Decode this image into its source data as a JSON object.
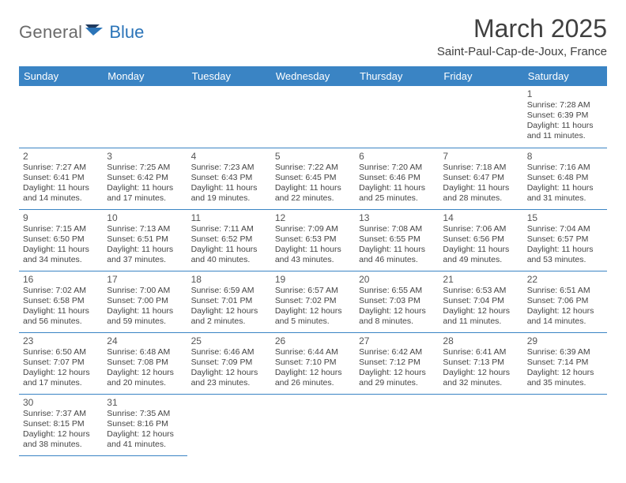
{
  "brand": {
    "part1": "General",
    "part2": "Blue"
  },
  "title": "March 2025",
  "subtitle": "Saint-Paul-Cap-de-Joux, France",
  "colors": {
    "header_bg": "#3a84c4",
    "header_fg": "#ffffff",
    "border": "#3a84c4",
    "logo_gray": "#6a6a6a",
    "logo_blue": "#2b74b8",
    "text": "#404040"
  },
  "weekdays": [
    "Sunday",
    "Monday",
    "Tuesday",
    "Wednesday",
    "Thursday",
    "Friday",
    "Saturday"
  ],
  "weeks": [
    [
      null,
      null,
      null,
      null,
      null,
      null,
      {
        "n": "1",
        "sunrise": "Sunrise: 7:28 AM",
        "sunset": "Sunset: 6:39 PM",
        "daylight": "Daylight: 11 hours and 11 minutes."
      }
    ],
    [
      {
        "n": "2",
        "sunrise": "Sunrise: 7:27 AM",
        "sunset": "Sunset: 6:41 PM",
        "daylight": "Daylight: 11 hours and 14 minutes."
      },
      {
        "n": "3",
        "sunrise": "Sunrise: 7:25 AM",
        "sunset": "Sunset: 6:42 PM",
        "daylight": "Daylight: 11 hours and 17 minutes."
      },
      {
        "n": "4",
        "sunrise": "Sunrise: 7:23 AM",
        "sunset": "Sunset: 6:43 PM",
        "daylight": "Daylight: 11 hours and 19 minutes."
      },
      {
        "n": "5",
        "sunrise": "Sunrise: 7:22 AM",
        "sunset": "Sunset: 6:45 PM",
        "daylight": "Daylight: 11 hours and 22 minutes."
      },
      {
        "n": "6",
        "sunrise": "Sunrise: 7:20 AM",
        "sunset": "Sunset: 6:46 PM",
        "daylight": "Daylight: 11 hours and 25 minutes."
      },
      {
        "n": "7",
        "sunrise": "Sunrise: 7:18 AM",
        "sunset": "Sunset: 6:47 PM",
        "daylight": "Daylight: 11 hours and 28 minutes."
      },
      {
        "n": "8",
        "sunrise": "Sunrise: 7:16 AM",
        "sunset": "Sunset: 6:48 PM",
        "daylight": "Daylight: 11 hours and 31 minutes."
      }
    ],
    [
      {
        "n": "9",
        "sunrise": "Sunrise: 7:15 AM",
        "sunset": "Sunset: 6:50 PM",
        "daylight": "Daylight: 11 hours and 34 minutes."
      },
      {
        "n": "10",
        "sunrise": "Sunrise: 7:13 AM",
        "sunset": "Sunset: 6:51 PM",
        "daylight": "Daylight: 11 hours and 37 minutes."
      },
      {
        "n": "11",
        "sunrise": "Sunrise: 7:11 AM",
        "sunset": "Sunset: 6:52 PM",
        "daylight": "Daylight: 11 hours and 40 minutes."
      },
      {
        "n": "12",
        "sunrise": "Sunrise: 7:09 AM",
        "sunset": "Sunset: 6:53 PM",
        "daylight": "Daylight: 11 hours and 43 minutes."
      },
      {
        "n": "13",
        "sunrise": "Sunrise: 7:08 AM",
        "sunset": "Sunset: 6:55 PM",
        "daylight": "Daylight: 11 hours and 46 minutes."
      },
      {
        "n": "14",
        "sunrise": "Sunrise: 7:06 AM",
        "sunset": "Sunset: 6:56 PM",
        "daylight": "Daylight: 11 hours and 49 minutes."
      },
      {
        "n": "15",
        "sunrise": "Sunrise: 7:04 AM",
        "sunset": "Sunset: 6:57 PM",
        "daylight": "Daylight: 11 hours and 53 minutes."
      }
    ],
    [
      {
        "n": "16",
        "sunrise": "Sunrise: 7:02 AM",
        "sunset": "Sunset: 6:58 PM",
        "daylight": "Daylight: 11 hours and 56 minutes."
      },
      {
        "n": "17",
        "sunrise": "Sunrise: 7:00 AM",
        "sunset": "Sunset: 7:00 PM",
        "daylight": "Daylight: 11 hours and 59 minutes."
      },
      {
        "n": "18",
        "sunrise": "Sunrise: 6:59 AM",
        "sunset": "Sunset: 7:01 PM",
        "daylight": "Daylight: 12 hours and 2 minutes."
      },
      {
        "n": "19",
        "sunrise": "Sunrise: 6:57 AM",
        "sunset": "Sunset: 7:02 PM",
        "daylight": "Daylight: 12 hours and 5 minutes."
      },
      {
        "n": "20",
        "sunrise": "Sunrise: 6:55 AM",
        "sunset": "Sunset: 7:03 PM",
        "daylight": "Daylight: 12 hours and 8 minutes."
      },
      {
        "n": "21",
        "sunrise": "Sunrise: 6:53 AM",
        "sunset": "Sunset: 7:04 PM",
        "daylight": "Daylight: 12 hours and 11 minutes."
      },
      {
        "n": "22",
        "sunrise": "Sunrise: 6:51 AM",
        "sunset": "Sunset: 7:06 PM",
        "daylight": "Daylight: 12 hours and 14 minutes."
      }
    ],
    [
      {
        "n": "23",
        "sunrise": "Sunrise: 6:50 AM",
        "sunset": "Sunset: 7:07 PM",
        "daylight": "Daylight: 12 hours and 17 minutes."
      },
      {
        "n": "24",
        "sunrise": "Sunrise: 6:48 AM",
        "sunset": "Sunset: 7:08 PM",
        "daylight": "Daylight: 12 hours and 20 minutes."
      },
      {
        "n": "25",
        "sunrise": "Sunrise: 6:46 AM",
        "sunset": "Sunset: 7:09 PM",
        "daylight": "Daylight: 12 hours and 23 minutes."
      },
      {
        "n": "26",
        "sunrise": "Sunrise: 6:44 AM",
        "sunset": "Sunset: 7:10 PM",
        "daylight": "Daylight: 12 hours and 26 minutes."
      },
      {
        "n": "27",
        "sunrise": "Sunrise: 6:42 AM",
        "sunset": "Sunset: 7:12 PM",
        "daylight": "Daylight: 12 hours and 29 minutes."
      },
      {
        "n": "28",
        "sunrise": "Sunrise: 6:41 AM",
        "sunset": "Sunset: 7:13 PM",
        "daylight": "Daylight: 12 hours and 32 minutes."
      },
      {
        "n": "29",
        "sunrise": "Sunrise: 6:39 AM",
        "sunset": "Sunset: 7:14 PM",
        "daylight": "Daylight: 12 hours and 35 minutes."
      }
    ],
    [
      {
        "n": "30",
        "sunrise": "Sunrise: 7:37 AM",
        "sunset": "Sunset: 8:15 PM",
        "daylight": "Daylight: 12 hours and 38 minutes."
      },
      {
        "n": "31",
        "sunrise": "Sunrise: 7:35 AM",
        "sunset": "Sunset: 8:16 PM",
        "daylight": "Daylight: 12 hours and 41 minutes."
      },
      null,
      null,
      null,
      null,
      null
    ]
  ]
}
